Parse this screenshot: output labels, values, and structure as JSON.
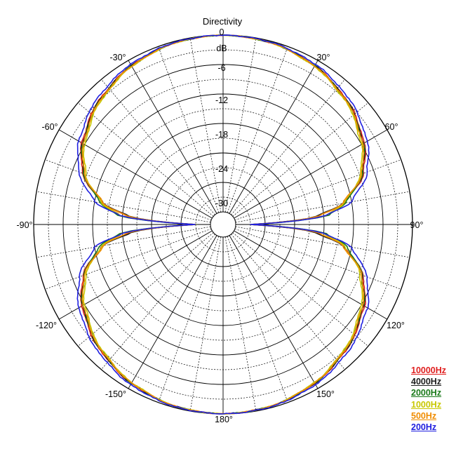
{
  "chart_data": {
    "type": "polar-line",
    "title": "Directivity",
    "radial_unit": "dB",
    "radial_range": [
      -36,
      0
    ],
    "radial_labels": [
      "0",
      "-6",
      "-12",
      "-18",
      "-24",
      "-30"
    ],
    "angle_labels": [
      "0",
      "30°",
      "60°",
      "90°",
      "120°",
      "150°",
      "180°",
      "-150°",
      "-120°",
      "-90°",
      "-60°",
      "-30°"
    ],
    "grid": true,
    "legend_position": "bottom-right",
    "series": [
      {
        "name": "10000Hz",
        "color": "#e02020",
        "angles": [
          0,
          15,
          30,
          45,
          60,
          70,
          80,
          85,
          90,
          95,
          100,
          110,
          120,
          135,
          150,
          165,
          180
        ],
        "values": [
          0,
          -0.3,
          -1.2,
          -2.8,
          -5.3,
          -8.1,
          -13.5,
          -19.0,
          -33.0,
          -19.5,
          -13.5,
          -8.2,
          -5.3,
          -2.8,
          -1.2,
          -0.3,
          0
        ]
      },
      {
        "name": "4000Hz",
        "color": "#202020",
        "angles": [
          0,
          15,
          30,
          45,
          60,
          70,
          80,
          85,
          90,
          95,
          100,
          110,
          120,
          135,
          150,
          165,
          180
        ],
        "values": [
          0,
          -0.3,
          -1.2,
          -2.9,
          -5.5,
          -8.3,
          -13.8,
          -19.5,
          -33.0,
          -19.8,
          -13.8,
          -8.4,
          -5.5,
          -2.9,
          -1.2,
          -0.3,
          0
        ]
      },
      {
        "name": "2000Hz",
        "color": "#1a7a1a",
        "angles": [
          0,
          15,
          30,
          45,
          60,
          70,
          80,
          85,
          90,
          95,
          100,
          110,
          120,
          135,
          150,
          165,
          180
        ],
        "values": [
          0,
          -0.3,
          -1.3,
          -3.0,
          -5.6,
          -8.4,
          -13.2,
          -17.0,
          -33.0,
          -17.5,
          -13.0,
          -8.5,
          -5.6,
          -3.0,
          -1.3,
          -0.3,
          0
        ]
      },
      {
        "name": "1000Hz",
        "color": "#c8c800",
        "angles": [
          0,
          15,
          30,
          45,
          60,
          70,
          80,
          85,
          90,
          95,
          100,
          110,
          120,
          135,
          150,
          165,
          180
        ],
        "values": [
          0,
          -0.3,
          -1.4,
          -3.2,
          -6.0,
          -8.8,
          -13.5,
          -17.5,
          -33.0,
          -18.0,
          -13.5,
          -8.9,
          -6.0,
          -3.2,
          -1.4,
          -0.3,
          0
        ]
      },
      {
        "name": "500Hz",
        "color": "#f08c00",
        "angles": [
          0,
          15,
          30,
          45,
          60,
          70,
          80,
          85,
          90,
          95,
          100,
          110,
          120,
          135,
          150,
          165,
          180
        ],
        "values": [
          0,
          -0.3,
          -1.3,
          -3.0,
          -5.7,
          -8.5,
          -13.8,
          -19.0,
          -33.0,
          -19.0,
          -13.8,
          -8.5,
          -5.7,
          -3.0,
          -1.3,
          -0.3,
          0
        ]
      },
      {
        "name": "200Hz",
        "color": "#2020e0",
        "angles": [
          0,
          15,
          30,
          45,
          60,
          70,
          80,
          85,
          90,
          95,
          100,
          110,
          120,
          135,
          150,
          165,
          180
        ],
        "values": [
          0,
          -0.2,
          -0.9,
          -2.3,
          -4.6,
          -7.3,
          -12.0,
          -17.5,
          -33.0,
          -18.0,
          -12.0,
          -7.4,
          -4.6,
          -2.3,
          -0.9,
          -0.2,
          0
        ]
      }
    ]
  }
}
